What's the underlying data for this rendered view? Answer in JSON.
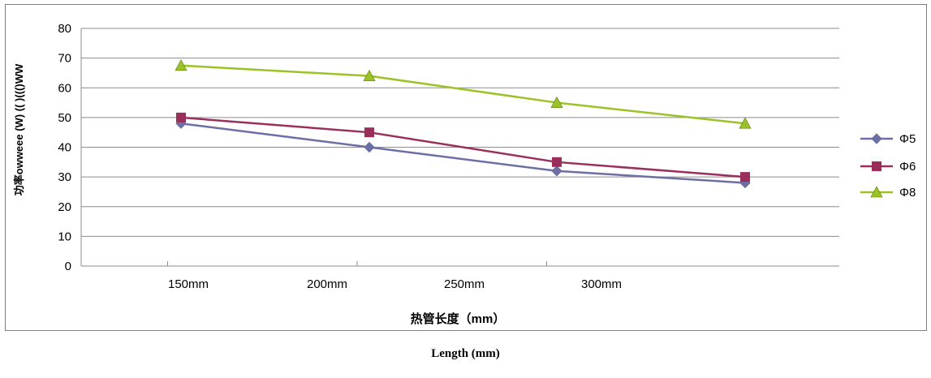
{
  "chart_data": {
    "type": "line",
    "categories": [
      "150mm",
      "200mm",
      "250mm",
      "300mm"
    ],
    "xlabel": "热管长度（mm）",
    "ylabel": "功率owweee (W) (( )((()WW",
    "ylim": [
      0,
      80
    ],
    "yticks": [
      0,
      10,
      20,
      30,
      40,
      50,
      60,
      70,
      80
    ],
    "grid": true,
    "legend_position": "right",
    "series": [
      {
        "name": "Φ5",
        "values": [
          48,
          40,
          32,
          28
        ],
        "color": "#6b6fa3",
        "marker": "diamond"
      },
      {
        "name": "Φ6",
        "values": [
          50,
          45,
          35,
          30
        ],
        "color": "#9b2f5c",
        "marker": "square"
      },
      {
        "name": "Φ8",
        "values": [
          67.5,
          64,
          55,
          48
        ],
        "color": "#9bc326",
        "marker": "triangle"
      }
    ]
  },
  "caption": "Length (mm)"
}
